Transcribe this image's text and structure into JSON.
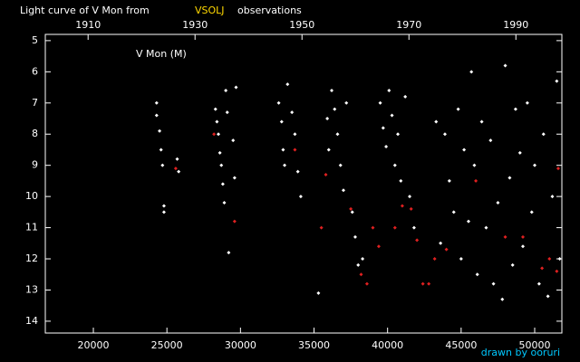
{
  "chart_data": {
    "type": "scatter",
    "title": "Light curve of V Mon from",
    "title_source": "VSOLJ",
    "title_suffix": "observations",
    "annotation": "V Mon (M)",
    "credit": "drawn by ooruri",
    "xlim": [
      16734,
      51848
    ],
    "xticks": [
      20000,
      25000,
      30000,
      35000,
      40000,
      45000,
      50000
    ],
    "x2lim": [
      1902.0,
      1998.6
    ],
    "x2ticks": [
      1910,
      1930,
      1950,
      1970,
      1990
    ],
    "ylim": [
      14.38,
      4.8
    ],
    "yticks": [
      5,
      6,
      7,
      8,
      9,
      10,
      11,
      12,
      13,
      14
    ],
    "series": [
      {
        "color": "#ffffff",
        "x": [
          24300,
          24300,
          24500,
          24600,
          24700,
          24800,
          24800,
          25700,
          25800,
          28300,
          28400,
          28500,
          28600,
          28700,
          28800,
          28900,
          29000,
          29100,
          29200,
          29500,
          29600,
          29700,
          32600,
          32800,
          32900,
          33000,
          33200,
          33500,
          33700,
          33900,
          34100,
          35300,
          35900,
          36000,
          36200,
          36400,
          36600,
          36800,
          37000,
          37200,
          37600,
          37800,
          38000,
          38300,
          39500,
          39700,
          39900,
          40100,
          40300,
          40500,
          40700,
          40900,
          41200,
          41500,
          41800,
          43300,
          43600,
          43900,
          44200,
          44500,
          44800,
          45000,
          45200,
          45500,
          45700,
          45900,
          46100,
          46400,
          46700,
          47000,
          47200,
          47500,
          47800,
          48000,
          48300,
          48500,
          48700,
          49000,
          49200,
          49500,
          49800,
          50000,
          50300,
          50600,
          50900,
          51200,
          51500,
          51700
        ],
        "values": [
          7.0,
          7.4,
          7.9,
          8.5,
          9.0,
          10.3,
          10.5,
          8.8,
          9.2,
          7.2,
          7.6,
          8.0,
          8.6,
          9.0,
          9.6,
          10.2,
          6.6,
          7.3,
          11.8,
          8.2,
          9.4,
          6.5,
          7.0,
          7.6,
          8.5,
          9.0,
          6.4,
          7.3,
          8.0,
          9.2,
          10.0,
          13.1,
          7.5,
          8.5,
          6.6,
          7.2,
          8.0,
          9.0,
          9.8,
          7.0,
          10.5,
          11.3,
          12.2,
          12.0,
          7.0,
          7.8,
          8.4,
          6.6,
          7.4,
          9.0,
          8.0,
          9.5,
          6.8,
          10.0,
          11.0,
          7.6,
          11.5,
          8.0,
          9.5,
          10.5,
          7.2,
          12.0,
          8.5,
          10.8,
          6.0,
          9.0,
          12.5,
          7.6,
          11.0,
          8.2,
          12.8,
          10.2,
          13.3,
          5.8,
          9.4,
          12.2,
          7.2,
          8.6,
          11.6,
          7.0,
          10.5,
          9.0,
          12.8,
          8.0,
          13.2,
          10.0,
          6.3,
          12.0
        ]
      },
      {
        "color": "#e02020",
        "x": [
          25600,
          28200,
          29600,
          33700,
          35500,
          35800,
          37500,
          38200,
          38600,
          39000,
          39400,
          40500,
          41000,
          41600,
          42000,
          42400,
          42800,
          43200,
          44000,
          46000,
          48000,
          49200,
          50500,
          51000,
          51500,
          51600
        ],
        "values": [
          9.1,
          8.0,
          10.8,
          8.5,
          11.0,
          9.3,
          10.4,
          12.5,
          12.8,
          11.0,
          11.6,
          11.0,
          10.3,
          10.4,
          11.4,
          12.8,
          12.8,
          12.0,
          11.7,
          9.5,
          11.3,
          11.3,
          12.3,
          12.0,
          12.4,
          9.1
        ]
      }
    ]
  }
}
